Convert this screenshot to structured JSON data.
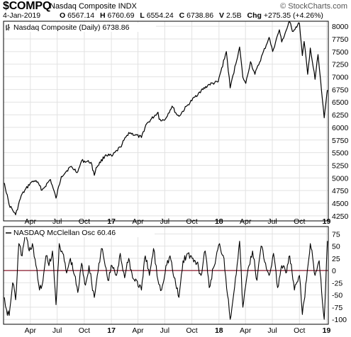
{
  "header": {
    "symbol": "$COMPQ",
    "name": "Nasdaq Composite INDX",
    "watermark": "© StockCharts.com",
    "date": "4-Jan-2019",
    "quote": {
      "open_label": "O",
      "open": "6567.14",
      "high_label": "H",
      "high": "6760.69",
      "low_label": "L",
      "low": "6554.24",
      "close_label": "C",
      "close": "6738.86",
      "volume_label": "V",
      "volume": "2.5B",
      "change_label": "Chg",
      "change": "+275.35 (+4.26%)"
    }
  },
  "colors": {
    "price_line": "#000000",
    "oscillator_line": "#000000",
    "zero_line": "#8b1a2e",
    "grid": "#e2e2e2",
    "border": "#000000"
  },
  "chart_data": [
    {
      "type": "line",
      "legend": "Nasdaq Composite (Daily) 6738.86",
      "x_tick_labels": [
        "Apr",
        "Jul",
        "Oct",
        "17",
        "Apr",
        "Jul",
        "Oct",
        "18",
        "Apr",
        "Jul",
        "Oct",
        "19"
      ],
      "y_tick_labels": [
        "4250",
        "4500",
        "4750",
        "5000",
        "5250",
        "5500",
        "5750",
        "6000",
        "6250",
        "6500",
        "6750",
        "7000",
        "7250",
        "7500",
        "7750",
        "8000"
      ],
      "ylim": [
        4150,
        8100
      ],
      "grid": true,
      "series": [
        {
          "name": "Nasdaq Composite",
          "x": [
            "2016-01-04",
            "2016-01-20",
            "2016-02-11",
            "2016-03-01",
            "2016-04-01",
            "2016-04-20",
            "2016-05-11",
            "2016-06-08",
            "2016-06-27",
            "2016-07-15",
            "2016-08-15",
            "2016-09-09",
            "2016-09-22",
            "2016-10-24",
            "2016-11-04",
            "2016-11-10",
            "2016-12-13",
            "2017-01-03",
            "2017-01-31",
            "2017-03-01",
            "2017-04-13",
            "2017-04-28",
            "2017-06-08",
            "2017-06-12",
            "2017-06-30",
            "2017-07-26",
            "2017-08-10",
            "2017-08-18",
            "2017-09-18",
            "2017-10-27",
            "2017-11-29",
            "2017-12-29",
            "2018-01-26",
            "2018-02-08",
            "2018-03-12",
            "2018-03-23",
            "2018-04-02",
            "2018-04-18",
            "2018-05-03",
            "2018-06-20",
            "2018-07-02",
            "2018-07-25",
            "2018-08-02",
            "2018-08-29",
            "2018-09-07",
            "2018-10-01",
            "2018-10-11",
            "2018-10-17",
            "2018-10-29",
            "2018-11-07",
            "2018-11-23",
            "2018-12-03",
            "2018-12-24",
            "2019-01-02",
            "2019-01-04"
          ],
          "y": [
            4900,
            4470,
            4270,
            4650,
            4900,
            4950,
            4760,
            4970,
            4600,
            5030,
            5220,
            5120,
            5340,
            5310,
            5050,
            5200,
            5460,
            5430,
            5610,
            5900,
            5800,
            6050,
            6300,
            6160,
            6140,
            6420,
            6260,
            6220,
            6450,
            6700,
            6850,
            6900,
            7500,
            6780,
            7590,
            6990,
            6870,
            7300,
            7050,
            7780,
            7500,
            7930,
            7690,
            8100,
            7900,
            8060,
            7420,
            7700,
            7050,
            7570,
            6950,
            7440,
            6190,
            6660,
            6738.86
          ]
        }
      ]
    },
    {
      "type": "line",
      "legend": "NASDAQ McClellan Osc 60.46",
      "x_tick_labels": [
        "Apr",
        "Jul",
        "Oct",
        "17",
        "Apr",
        "Jul",
        "Oct",
        "18",
        "Apr",
        "Jul",
        "Oct",
        "19"
      ],
      "y_tick_labels": [
        "75",
        "50",
        "25",
        "0",
        "-25",
        "-50",
        "-75",
        "-100"
      ],
      "ylim": [
        -110,
        90
      ],
      "grid": true,
      "reference_line": 0,
      "series": [
        {
          "name": "McClellan Oscillator",
          "x": [
            "2016-01-04",
            "2016-01-11",
            "2016-01-20",
            "2016-02-01",
            "2016-02-11",
            "2016-02-22",
            "2016-03-04",
            "2016-03-15",
            "2016-03-28",
            "2016-04-08",
            "2016-04-20",
            "2016-05-02",
            "2016-05-11",
            "2016-05-24",
            "2016-06-03",
            "2016-06-15",
            "2016-06-27",
            "2016-07-08",
            "2016-07-20",
            "2016-08-02",
            "2016-08-15",
            "2016-08-29",
            "2016-09-09",
            "2016-09-22",
            "2016-10-05",
            "2016-10-17",
            "2016-11-04",
            "2016-11-14",
            "2016-11-28",
            "2016-12-08",
            "2016-12-20",
            "2017-01-03",
            "2017-01-18",
            "2017-01-31",
            "2017-02-15",
            "2017-03-01",
            "2017-03-14",
            "2017-03-27",
            "2017-04-13",
            "2017-04-26",
            "2017-05-10",
            "2017-05-24",
            "2017-06-08",
            "2017-06-20",
            "2017-07-05",
            "2017-07-19",
            "2017-08-02",
            "2017-08-18",
            "2017-09-01",
            "2017-09-18",
            "2017-10-02",
            "2017-10-18",
            "2017-11-01",
            "2017-11-15",
            "2017-11-29",
            "2017-12-13",
            "2018-01-03",
            "2018-01-18",
            "2018-02-08",
            "2018-02-26",
            "2018-03-12",
            "2018-03-23",
            "2018-04-10",
            "2018-04-25",
            "2018-05-10",
            "2018-05-24",
            "2018-06-08",
            "2018-06-20",
            "2018-07-05",
            "2018-07-19",
            "2018-08-02",
            "2018-08-16",
            "2018-08-29",
            "2018-09-14",
            "2018-10-01",
            "2018-10-11",
            "2018-10-25",
            "2018-11-07",
            "2018-11-23",
            "2018-12-07",
            "2018-12-24",
            "2019-01-04"
          ],
          "y": [
            -55,
            -80,
            -92,
            -25,
            -60,
            55,
            30,
            80,
            40,
            55,
            10,
            -40,
            -30,
            30,
            10,
            40,
            -70,
            55,
            35,
            -5,
            25,
            -10,
            -45,
            15,
            -30,
            10,
            -55,
            -10,
            45,
            20,
            -20,
            10,
            -10,
            35,
            -15,
            25,
            -15,
            -20,
            -40,
            30,
            -10,
            45,
            -20,
            -40,
            10,
            30,
            -15,
            -55,
            20,
            35,
            25,
            15,
            -10,
            40,
            -35,
            5,
            55,
            25,
            -100,
            -15,
            60,
            -75,
            5,
            40,
            -20,
            50,
            15,
            -10,
            35,
            -35,
            10,
            -5,
            30,
            -40,
            -10,
            -90,
            -20,
            55,
            -10,
            20,
            -100,
            60.46
          ]
        }
      ]
    }
  ]
}
